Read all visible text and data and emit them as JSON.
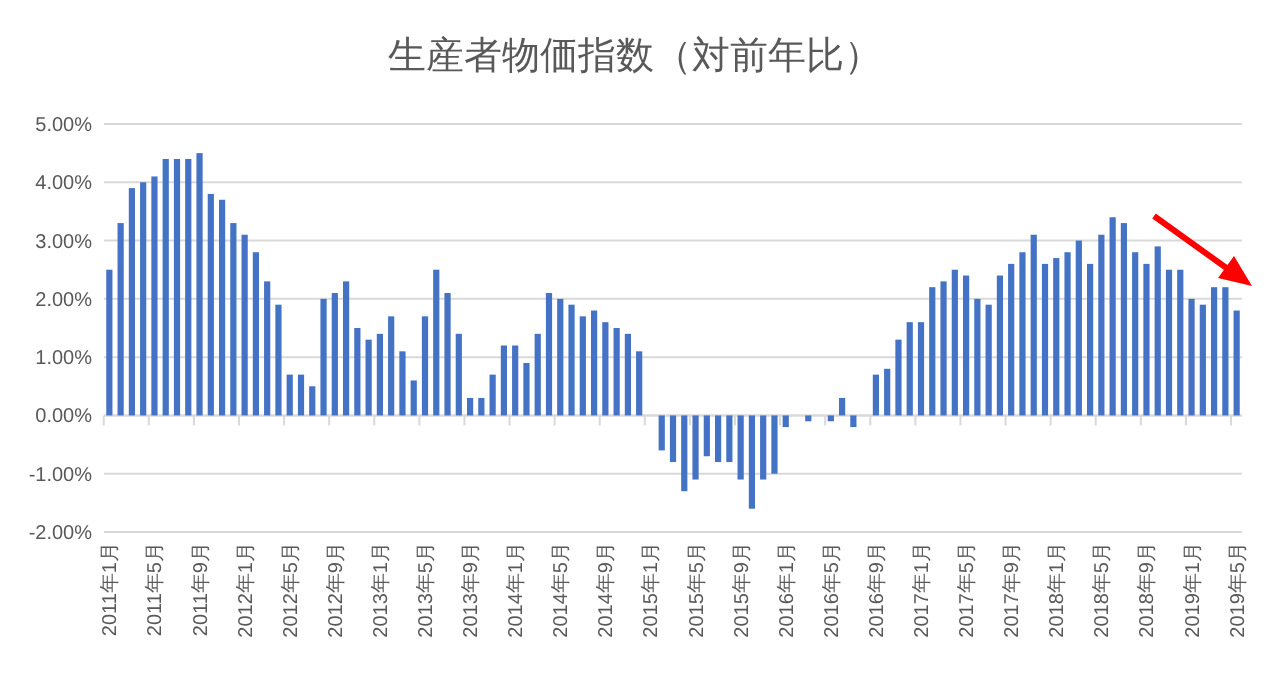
{
  "chart_data": {
    "type": "bar",
    "title": "生産者物価指数（対前年比）",
    "categories": [
      "2011年1月",
      null,
      null,
      null,
      "2011年5月",
      null,
      null,
      null,
      "2011年9月",
      null,
      null,
      null,
      "2012年1月",
      null,
      null,
      null,
      "2012年5月",
      null,
      null,
      null,
      "2012年9月",
      null,
      null,
      null,
      "2013年1月",
      null,
      null,
      null,
      "2013年5月",
      null,
      null,
      null,
      "2013年9月",
      null,
      null,
      null,
      "2014年1月",
      null,
      null,
      null,
      "2014年5月",
      null,
      null,
      null,
      "2014年9月",
      null,
      null,
      null,
      "2015年1月",
      null,
      null,
      null,
      "2015年5月",
      null,
      null,
      null,
      "2015年9月",
      null,
      null,
      null,
      "2016年1月",
      null,
      null,
      null,
      "2016年5月",
      null,
      null,
      null,
      "2016年9月",
      null,
      null,
      null,
      "2017年1月",
      null,
      null,
      null,
      "2017年5月",
      null,
      null,
      null,
      "2017年9月",
      null,
      null,
      null,
      "2018年1月",
      null,
      null,
      null,
      "2018年5月",
      null,
      null,
      null,
      "2018年9月",
      null,
      null,
      null,
      "2019年1月",
      null,
      null,
      null,
      "2019年5月"
    ],
    "values": [
      2.5,
      3.3,
      3.9,
      4.0,
      4.1,
      4.4,
      4.4,
      4.4,
      4.5,
      3.8,
      3.7,
      3.3,
      3.1,
      2.8,
      2.3,
      1.9,
      0.7,
      0.7,
      0.5,
      2.0,
      2.1,
      2.3,
      1.5,
      1.3,
      1.4,
      1.7,
      1.1,
      0.6,
      1.7,
      2.5,
      2.1,
      1.4,
      0.3,
      0.3,
      0.7,
      1.2,
      1.2,
      0.9,
      1.4,
      2.1,
      2.0,
      1.9,
      1.7,
      1.8,
      1.6,
      1.5,
      1.4,
      1.1,
      0,
      -0.6,
      -0.8,
      -1.3,
      -1.1,
      -0.7,
      -0.8,
      -0.8,
      -1.1,
      -1.6,
      -1.1,
      -1.0,
      -0.2,
      0,
      -0.1,
      0,
      -0.1,
      0.3,
      -0.2,
      0,
      0.7,
      0.8,
      1.3,
      1.6,
      1.6,
      2.2,
      2.3,
      2.5,
      2.4,
      2.0,
      1.9,
      2.4,
      2.6,
      2.8,
      3.1,
      2.6,
      2.7,
      2.8,
      3.0,
      2.6,
      3.1,
      3.4,
      3.3,
      2.8,
      2.6,
      2.9,
      2.5,
      2.5,
      2.0,
      1.9,
      2.2,
      2.2,
      1.8
    ],
    "color": "#4472c4",
    "ylim": [
      -2,
      5
    ],
    "yticks": [
      {
        "value": -2,
        "label": "-2.00%"
      },
      {
        "value": -1,
        "label": "-1.00%"
      },
      {
        "value": 0,
        "label": "0.00%"
      },
      {
        "value": 1,
        "label": "1.00%"
      },
      {
        "value": 2,
        "label": "2.00%"
      },
      {
        "value": 3,
        "label": "3.00%"
      },
      {
        "value": 4,
        "label": "4.00%"
      },
      {
        "value": 5,
        "label": "5.00%"
      }
    ],
    "grid": "y"
  }
}
